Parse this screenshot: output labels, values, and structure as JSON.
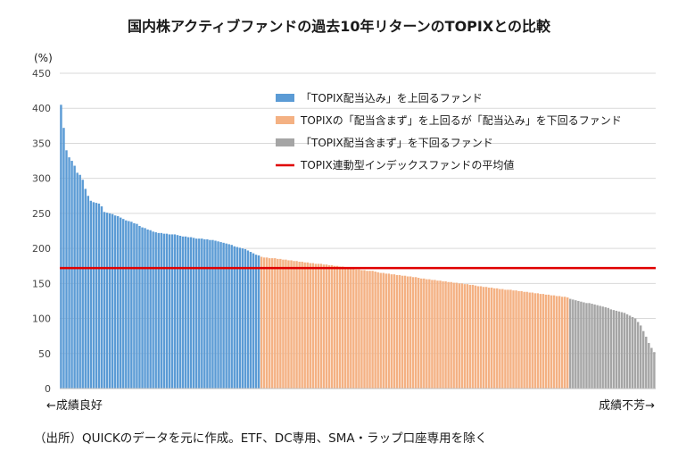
{
  "title": "国内株アクティブファンドの過去10年リターンのTOPIXとの比較",
  "unit_label": "(%)",
  "left_note": "←成績良好",
  "right_note": "成績不芳→",
  "source_note": "（出所）QUICKのデータを元に作成。ETF、DC専用、SMA・ラップ口座専用を除く",
  "colors": {
    "blue": "#5b9bd5",
    "orange": "#f4b183",
    "gray": "#a5a5a5",
    "red": "#e00000",
    "grid": "#d9d9d9",
    "axis": "#bfbfbf"
  },
  "chart_data": {
    "type": "bar",
    "ylim": [
      0,
      450
    ],
    "y_ticks": [
      "0",
      "50",
      "100",
      "150",
      "200",
      "250",
      "300",
      "350",
      "400",
      "450"
    ],
    "grid": true,
    "legend_position": "top-right",
    "legend": [
      {
        "label": "「TOPIX配当込み」を上回るファンド",
        "color": "#5b9bd5",
        "kind": "box"
      },
      {
        "label": "TOPIXの「配当含まず」を上回るが「配当込み」を下回るファンド",
        "color": "#f4b183",
        "kind": "box"
      },
      {
        "label": "「TOPIX配当含まず」を下回るファンド",
        "color": "#a5a5a5",
        "kind": "box"
      },
      {
        "label": "TOPIX連動型インデックスファンドの平均値",
        "color": "#e00000",
        "kind": "line"
      }
    ],
    "index_fund_average": 172,
    "series": [
      {
        "color": "#5b9bd5",
        "values": [
          405,
          372,
          340,
          330,
          325,
          318,
          308,
          305,
          298,
          285,
          275,
          268,
          266,
          265,
          264,
          260,
          252,
          251,
          250,
          249,
          247,
          246,
          244,
          242,
          240,
          239,
          238,
          236,
          235,
          232,
          230,
          229,
          227,
          226,
          224,
          223,
          222,
          222,
          221,
          221,
          220,
          220,
          220,
          219,
          218,
          217,
          217,
          216,
          216,
          215,
          214,
          214,
          214,
          213,
          213,
          212,
          212,
          211,
          210,
          209,
          208,
          207,
          206,
          205,
          203,
          202,
          201,
          200,
          199,
          197,
          195,
          193,
          191,
          190
        ]
      },
      {
        "color": "#f4b183",
        "values": [
          188,
          187,
          187,
          186,
          186,
          186,
          185,
          185,
          184,
          184,
          183,
          183,
          182,
          182,
          181,
          181,
          180,
          180,
          179,
          179,
          178,
          178,
          178,
          177,
          177,
          176,
          176,
          175,
          175,
          174,
          174,
          173,
          173,
          172,
          171,
          170,
          170,
          169,
          169,
          168,
          168,
          168,
          167,
          166,
          165,
          165,
          164,
          164,
          163,
          163,
          162,
          162,
          161,
          161,
          160,
          160,
          159,
          159,
          158,
          157,
          157,
          156,
          156,
          155,
          155,
          154,
          154,
          153,
          153,
          152,
          152,
          151,
          151,
          150,
          150,
          149,
          149,
          148,
          148,
          147,
          146,
          146,
          145,
          145,
          144,
          144,
          143,
          143,
          142,
          142,
          141,
          141,
          141,
          140,
          140,
          139,
          139,
          138,
          138,
          137,
          137,
          136,
          136,
          135,
          135,
          134,
          134,
          133,
          133,
          132,
          132,
          131,
          131,
          130
        ]
      },
      {
        "color": "#a5a5a5",
        "values": [
          128,
          127,
          126,
          125,
          124,
          123,
          122,
          122,
          121,
          120,
          119,
          118,
          117,
          116,
          115,
          113,
          112,
          111,
          110,
          109,
          108,
          106,
          104,
          102,
          100,
          95,
          90,
          82,
          74,
          65,
          58,
          52
        ]
      }
    ]
  }
}
